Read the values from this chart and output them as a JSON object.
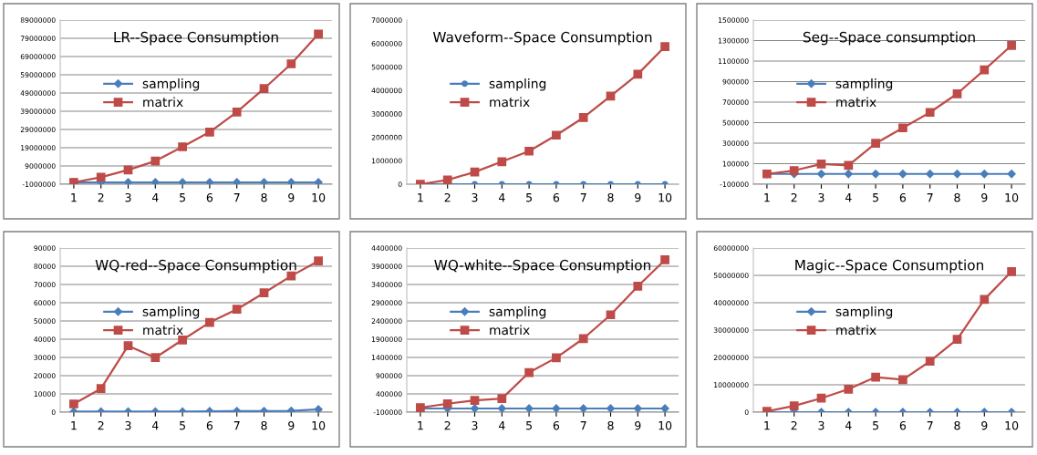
{
  "chart_data": [
    {
      "type": "line",
      "title": "LR--Space Consumption",
      "categories": [
        "1",
        "2",
        "3",
        "4",
        "5",
        "6",
        "7",
        "8",
        "9",
        "10"
      ],
      "ylim": [
        -1000000,
        89000000
      ],
      "yticks": [
        -1000000,
        9000000,
        19000000,
        29000000,
        39000000,
        49000000,
        59000000,
        69000000,
        79000000,
        89000000
      ],
      "grid": "y",
      "legend": "center left",
      "series": [
        {
          "name": "sampling",
          "color": "#4a7ebb",
          "marker": "diamond",
          "values": [
            0,
            0,
            0,
            0,
            0,
            0,
            0,
            0,
            0,
            0
          ]
        },
        {
          "name": "matrix",
          "color": "#be4b48",
          "marker": "square",
          "values": [
            0,
            2800000,
            6800000,
            11700000,
            19500000,
            27600000,
            38600000,
            51400000,
            65000000,
            81300000
          ]
        }
      ]
    },
    {
      "type": "line",
      "title": "Waveform--Space Consumption",
      "categories": [
        "1",
        "2",
        "3",
        "4",
        "5",
        "6",
        "7",
        "8",
        "9",
        "10"
      ],
      "ylim": [
        0,
        7000000
      ],
      "yticks": [
        0,
        1000000,
        2000000,
        3000000,
        4000000,
        5000000,
        6000000,
        7000000
      ],
      "legend": "center left",
      "series": [
        {
          "name": "sampling",
          "color": "#4a7ebb",
          "marker": "circle",
          "values": [
            0,
            0,
            0,
            0,
            0,
            0,
            0,
            0,
            0,
            0
          ]
        },
        {
          "name": "matrix",
          "color": "#be4b48",
          "marker": "square",
          "values": [
            0,
            180000,
            520000,
            960000,
            1410000,
            2090000,
            2840000,
            3760000,
            4690000,
            5870000
          ]
        }
      ]
    },
    {
      "type": "line",
      "title": "Seg--Space consumption",
      "categories": [
        "1",
        "2",
        "3",
        "4",
        "5",
        "6",
        "7",
        "8",
        "9",
        "10"
      ],
      "ylim": [
        -100000,
        1500000
      ],
      "yticks": [
        -100000,
        100000,
        300000,
        500000,
        700000,
        900000,
        1100000,
        1300000,
        1500000
      ],
      "grid": "y",
      "legend": "center left",
      "series": [
        {
          "name": "sampling",
          "color": "#4a7ebb",
          "marker": "diamond",
          "values": [
            0,
            0,
            0,
            0,
            0,
            0,
            0,
            0,
            0,
            0
          ]
        },
        {
          "name": "matrix",
          "color": "#be4b48",
          "marker": "square",
          "values": [
            0,
            33000,
            97000,
            83000,
            298000,
            449000,
            600000,
            782000,
            1015000,
            1253000
          ]
        }
      ]
    },
    {
      "type": "line",
      "title": "WQ-red--Space Consumption",
      "categories": [
        "1",
        "2",
        "3",
        "4",
        "5",
        "6",
        "7",
        "8",
        "9",
        "10"
      ],
      "ylim": [
        0,
        90000
      ],
      "yticks": [
        0,
        10000,
        20000,
        30000,
        40000,
        50000,
        60000,
        70000,
        80000,
        90000
      ],
      "grid": "y",
      "legend": "center left",
      "series": [
        {
          "name": "sampling",
          "color": "#4a7ebb",
          "marker": "diamond",
          "values": [
            300,
            300,
            300,
            300,
            300,
            500,
            600,
            600,
            700,
            1500
          ]
        },
        {
          "name": "matrix",
          "color": "#be4b48",
          "marker": "square",
          "values": [
            4500,
            12900,
            36400,
            29900,
            39600,
            49200,
            56400,
            65400,
            74700,
            82900
          ]
        }
      ]
    },
    {
      "type": "line",
      "title": "WQ-white--Space Consumption",
      "categories": [
        "1",
        "2",
        "3",
        "4",
        "5",
        "6",
        "7",
        "8",
        "9",
        "10"
      ],
      "ylim": [
        -100000,
        4400000
      ],
      "yticks": [
        -100000,
        400000,
        900000,
        1400000,
        1900000,
        2400000,
        2900000,
        3400000,
        3900000,
        4400000
      ],
      "grid": "y",
      "legend": "center left",
      "series": [
        {
          "name": "sampling",
          "color": "#4a7ebb",
          "marker": "diamond",
          "values": [
            0,
            0,
            0,
            0,
            0,
            0,
            0,
            0,
            0,
            0
          ]
        },
        {
          "name": "matrix",
          "color": "#be4b48",
          "marker": "square",
          "values": [
            24000,
            131000,
            221000,
            271000,
            987000,
            1391000,
            1918000,
            2569000,
            3351000,
            4076000
          ]
        }
      ]
    },
    {
      "type": "line",
      "title": "Magic--Space Consumption",
      "categories": [
        "1",
        "2",
        "3",
        "4",
        "5",
        "6",
        "7",
        "8",
        "9",
        "10"
      ],
      "ylim": [
        0,
        60000000
      ],
      "yticks": [
        0,
        10000000,
        20000000,
        30000000,
        40000000,
        50000000,
        60000000
      ],
      "grid": "y",
      "legend": "center left",
      "series": [
        {
          "name": "sampling",
          "color": "#4a7ebb",
          "marker": "diamond",
          "values": [
            0,
            0,
            0,
            0,
            0,
            0,
            0,
            0,
            0,
            0
          ]
        },
        {
          "name": "matrix",
          "color": "#be4b48",
          "marker": "square",
          "values": [
            300000,
            2300000,
            5100000,
            8400000,
            12800000,
            11900000,
            18600000,
            26600000,
            41200000,
            51400000
          ]
        }
      ]
    }
  ]
}
